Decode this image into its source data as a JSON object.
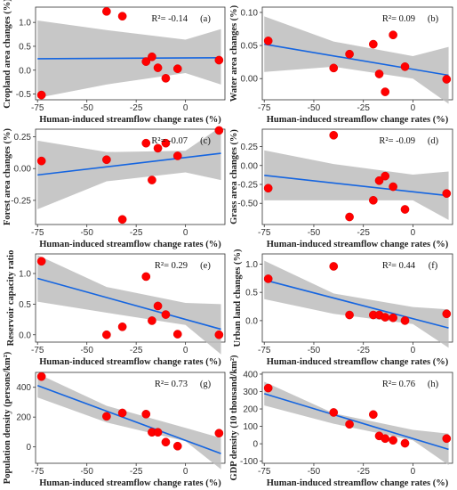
{
  "chart_data": [
    {
      "type": "scatter",
      "panel": "(a)",
      "r2_label": "R²= -0.14",
      "xlabel": "Human-induced streamflow change rates (%)",
      "ylabel": "Cropland area changes (%)",
      "xlim": [
        -76,
        20
      ],
      "ylim": [
        -0.62,
        1.32
      ],
      "xticks": [
        -75,
        -50,
        -25,
        0
      ],
      "yticks": [
        -0.5,
        0.0,
        0.5,
        1.0
      ],
      "ytick_labels": [
        "-0.5",
        "0.0",
        "0.5",
        "1.0"
      ],
      "x": [
        -73,
        -40,
        -32,
        -20,
        -17,
        -14,
        -10,
        -4,
        17
      ],
      "y": [
        -0.52,
        1.23,
        1.13,
        0.18,
        0.28,
        0.05,
        -0.17,
        0.03,
        0.21
      ],
      "fit": [
        0.24,
        0.26
      ],
      "band_top": [
        1.04,
        0.84,
        0.64,
        0.86
      ],
      "band_bottom": [
        -0.58,
        -0.3,
        -0.06,
        -0.3
      ]
    },
    {
      "type": "scatter",
      "panel": "(b)",
      "r2_label": "R²= 0.09",
      "xlabel": "Human-induced streamflow change rates (%)",
      "ylabel": "Water area changes (%)",
      "xlim": [
        -76,
        20
      ],
      "ylim": [
        -0.032,
        0.108
      ],
      "xticks": [
        -75,
        -50,
        -25,
        0
      ],
      "yticks": [
        0.0,
        0.05,
        0.1
      ],
      "ytick_labels": [
        "0.00",
        "0.05",
        "0.10"
      ],
      "x": [
        -73,
        -40,
        -32,
        -20,
        -17,
        -14,
        -10,
        -4,
        17
      ],
      "y": [
        0.057,
        0.016,
        0.037,
        0.052,
        0.007,
        -0.02,
        0.066,
        0.018,
        -0.001
      ],
      "fit": [
        0.052,
        0.005
      ],
      "band_top": [
        0.094,
        0.056,
        0.034,
        0.048
      ],
      "band_bottom": [
        0.01,
        0.018,
        0.0,
        -0.038
      ]
    },
    {
      "type": "scatter",
      "panel": "(c)",
      "r2_label": "R²= -0.07",
      "xlabel": "Human-induced streamflow change rates (%)",
      "ylabel": "Forest area changes (%)",
      "xlim": [
        -76,
        20
      ],
      "ylim": [
        -0.44,
        0.31
      ],
      "xticks": [
        -75,
        -50,
        -25,
        0
      ],
      "yticks": [
        -0.25,
        0.0,
        0.25
      ],
      "ytick_labels": [
        "-0.25",
        "0.00",
        "0.25"
      ],
      "x": [
        -73,
        -40,
        -32,
        -20,
        -17,
        -14,
        -10,
        -4,
        17
      ],
      "y": [
        0.06,
        0.07,
        -0.4,
        0.2,
        -0.09,
        0.16,
        0.2,
        0.1,
        0.3
      ],
      "fit": [
        -0.05,
        0.12
      ],
      "band_top": [
        0.22,
        0.13,
        0.14,
        0.33
      ],
      "band_bottom": [
        -0.32,
        -0.1,
        -0.03,
        -0.09
      ]
    },
    {
      "type": "scatter",
      "panel": "(d)",
      "r2_label": "R²= -0.09",
      "xlabel": "Human-induced streamflow change rates (%)",
      "ylabel": "Grass area changes (%)",
      "xlim": [
        -76,
        20
      ],
      "ylim": [
        -0.78,
        0.48
      ],
      "xticks": [
        -75,
        -50,
        -25,
        0
      ],
      "yticks": [
        -0.5,
        -0.25,
        0.0,
        0.25
      ],
      "ytick_labels": [
        "-0.50",
        "-0.25",
        "0.00",
        "0.25"
      ],
      "x": [
        -73,
        -40,
        -32,
        -20,
        -17,
        -14,
        -10,
        -4,
        17
      ],
      "y": [
        -0.3,
        0.4,
        -0.68,
        -0.46,
        -0.2,
        -0.14,
        -0.28,
        -0.58,
        -0.37
      ],
      "fit": [
        -0.13,
        -0.4
      ],
      "band_top": [
        0.2,
        0.02,
        -0.12,
        -0.08
      ],
      "band_bottom": [
        -0.46,
        -0.46,
        -0.46,
        -0.72
      ]
    },
    {
      "type": "scatter",
      "panel": "(e)",
      "r2_label": "R²= 0.29",
      "xlabel": "Human-induced streamflow change rates (%)",
      "ylabel": "Reservoir capacity ratio",
      "xlim": [
        -76,
        20
      ],
      "ylim": [
        -0.12,
        1.32
      ],
      "xticks": [
        -75,
        -50,
        -25,
        0
      ],
      "yticks": [
        0.0,
        0.5,
        1.0
      ],
      "ytick_labels": [
        "0.0",
        "0.5",
        "1.0"
      ],
      "x": [
        -73,
        -40,
        -32,
        -20,
        -17,
        -14,
        -10,
        -4,
        17
      ],
      "y": [
        1.2,
        0.0,
        0.13,
        0.95,
        0.23,
        0.47,
        0.33,
        0.01,
        0.0
      ],
      "fit": [
        0.92,
        0.09
      ],
      "band_top": [
        1.3,
        0.78,
        0.52,
        0.5
      ],
      "band_bottom": [
        0.54,
        0.36,
        0.16,
        -0.32
      ]
    },
    {
      "type": "scatter",
      "panel": "(f)",
      "r2_label": "R²= 0.44",
      "xlabel": "Human-induced streamflow change rates (%)",
      "ylabel": "Urban land changes (%)",
      "xlim": [
        -76,
        20
      ],
      "ylim": [
        -0.38,
        1.18
      ],
      "xticks": [
        -75,
        -50,
        -25,
        0
      ],
      "yticks": [
        0.0,
        0.5,
        1.0
      ],
      "ytick_labels": [
        "0.0",
        "0.5",
        "1.0"
      ],
      "x": [
        -73,
        -40,
        -32,
        -20,
        -17,
        -14,
        -10,
        -4,
        17
      ],
      "y": [
        0.74,
        0.96,
        0.1,
        0.1,
        0.1,
        0.06,
        0.05,
        0.0,
        0.12
      ],
      "fit": [
        0.72,
        -0.13
      ],
      "band_top": [
        1.06,
        0.48,
        0.24,
        0.2
      ],
      "band_bottom": [
        0.38,
        0.12,
        -0.06,
        -0.48
      ]
    },
    {
      "type": "scatter",
      "panel": "(g)",
      "r2_label": "R²= 0.73",
      "xlabel": "Human-induced streamflow change rates (%)",
      "ylabel": "Population density (persons/km²)",
      "xlim": [
        -76,
        20
      ],
      "ylim": [
        -110,
        500
      ],
      "xticks": [
        -75,
        -50,
        -25,
        0
      ],
      "yticks": [
        0,
        200,
        400
      ],
      "ytick_labels": [
        "0",
        "200",
        "400"
      ],
      "x": [
        -73,
        -40,
        -32,
        -20,
        -17,
        -14,
        -10,
        -4,
        17
      ],
      "y": [
        472,
        205,
        228,
        220,
        98,
        98,
        32,
        5,
        92
      ],
      "fit": [
        412,
        -45
      ],
      "band_top": [
        492,
        276,
        128,
        60
      ],
      "band_bottom": [
        332,
        164,
        38,
        -150
      ]
    },
    {
      "type": "scatter",
      "panel": "(h)",
      "r2_label": "R²= 0.76",
      "xlabel": "Human-induced streamflow change rates (%)",
      "ylabel": "GDP density (10 thousand/km²)",
      "xlim": [
        -76,
        20
      ],
      "ylim": [
        -112,
        410
      ],
      "xticks": [
        -75,
        -50,
        -25,
        0
      ],
      "yticks": [
        -100,
        0,
        100,
        200,
        300,
        400
      ],
      "ytick_labels": [
        "-100",
        "0",
        "100",
        "200",
        "300",
        "400"
      ],
      "x": [
        -73,
        -40,
        -32,
        -20,
        -17,
        -14,
        -10,
        -4,
        17
      ],
      "y": [
        320,
        180,
        112,
        168,
        45,
        30,
        20,
        3,
        30
      ],
      "fit": [
        288,
        -32
      ],
      "band_top": [
        356,
        175,
        80,
        58
      ],
      "band_bottom": [
        220,
        115,
        20,
        -122
      ]
    }
  ]
}
